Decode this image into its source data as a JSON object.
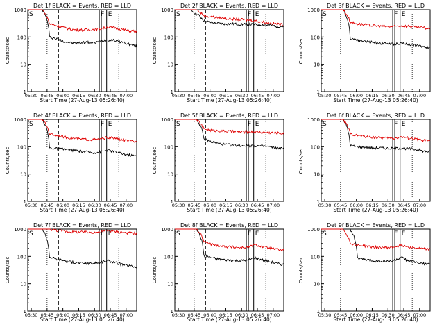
{
  "chart_data": [
    {
      "type": "line",
      "title": "Det 1f BLACK = Events, RED = LLD",
      "xlabel": "Start Time (27-Aug-13 05:26:40)",
      "ylabel": "Counts/sec",
      "x_ticks": [
        "05:30",
        "05:45",
        "06:00",
        "06:15",
        "06:30",
        "06:45",
        "07:00"
      ],
      "y_ticks": [
        "1",
        "10",
        "100",
        "1000"
      ],
      "ylim": [
        1,
        1000
      ],
      "xlim": [
        "05:26:40",
        "07:10:00"
      ],
      "y_scale": "log",
      "markers": [
        {
          "label": "S",
          "time": "05:26:40"
        },
        {
          "label": "F",
          "time": "06:34:30"
        },
        {
          "label": "E",
          "time": "06:41:30"
        }
      ],
      "series": [
        {
          "name": "Events",
          "color": "#000000",
          "values": [
            1000,
            1000,
            1000,
            100,
            85,
            70,
            60,
            60,
            65,
            60,
            70,
            80,
            75,
            65,
            55,
            45
          ]
        },
        {
          "name": "LLD",
          "color": "#e00000",
          "values": [
            1000,
            1000,
            1000,
            300,
            260,
            220,
            190,
            180,
            185,
            190,
            200,
            230,
            220,
            190,
            170,
            160
          ]
        }
      ]
    },
    {
      "type": "line",
      "title": "Det 2f BLACK = Events, RED = LLD",
      "xlabel": "Start Time (27-Aug-13 05:26:40)",
      "ylabel": "Counts/sec",
      "x_ticks": [
        "05:30",
        "05:45",
        "06:00",
        "06:15",
        "06:30",
        "06:45",
        "07:00"
      ],
      "y_ticks": [
        "1",
        "10",
        "100",
        "1000"
      ],
      "ylim": [
        1,
        1000
      ],
      "xlim": [
        "05:26:40",
        "07:10:00"
      ],
      "y_scale": "log",
      "markers": [
        {
          "label": "S",
          "time": "05:26:40"
        },
        {
          "label": "F",
          "time": "06:34:30"
        },
        {
          "label": "E",
          "time": "06:41:30"
        }
      ],
      "series": [
        {
          "name": "Events",
          "color": "#000000",
          "values": [
            1000,
            1000,
            1000,
            700,
            400,
            330,
            310,
            300,
            300,
            295,
            290,
            285,
            280,
            270,
            250,
            240
          ]
        },
        {
          "name": "LLD",
          "color": "#e00000",
          "values": [
            1000,
            1000,
            1000,
            1000,
            600,
            550,
            520,
            480,
            460,
            440,
            420,
            400,
            360,
            330,
            300,
            280
          ]
        }
      ]
    },
    {
      "type": "line",
      "title": "Det 3f BLACK = Events, RED = LLD",
      "xlabel": "Start Time (27-Aug-13 05:26:40)",
      "ylabel": "Counts/sec",
      "x_ticks": [
        "05:30",
        "05:45",
        "06:00",
        "06:15",
        "06:30",
        "06:45",
        "07:00"
      ],
      "y_ticks": [
        "1",
        "10",
        "100",
        "1000"
      ],
      "ylim": [
        1,
        1000
      ],
      "xlim": [
        "05:26:40",
        "07:10:00"
      ],
      "y_scale": "log",
      "markers": [
        {
          "label": "S",
          "time": "05:26:40"
        },
        {
          "label": "F",
          "time": "06:34:30"
        },
        {
          "label": "E",
          "time": "06:41:30"
        }
      ],
      "series": [
        {
          "name": "Events",
          "color": "#000000",
          "values": [
            1000,
            1000,
            1000,
            1000,
            90,
            80,
            70,
            65,
            60,
            58,
            55,
            60,
            55,
            50,
            45,
            40
          ]
        },
        {
          "name": "LLD",
          "color": "#e00000",
          "values": [
            1000,
            1000,
            1000,
            1000,
            350,
            300,
            280,
            260,
            250,
            240,
            240,
            260,
            250,
            230,
            220,
            200
          ]
        }
      ]
    },
    {
      "type": "line",
      "title": "Det 4f BLACK = Events, RED = LLD",
      "xlabel": "Start Time (27-Aug-13 05:26:40)",
      "ylabel": "Counts/sec",
      "x_ticks": [
        "05:30",
        "05:45",
        "06:00",
        "06:15",
        "06:30",
        "06:45",
        "07:00"
      ],
      "y_ticks": [
        "1",
        "10",
        "100",
        "1000"
      ],
      "ylim": [
        1,
        1000
      ],
      "xlim": [
        "05:26:40",
        "07:10:00"
      ],
      "y_scale": "log",
      "markers": [
        {
          "label": "S",
          "time": "05:26:40"
        },
        {
          "label": "F",
          "time": "06:34:30"
        },
        {
          "label": "E",
          "time": "06:41:30"
        }
      ],
      "series": [
        {
          "name": "Events",
          "color": "#000000",
          "values": [
            1000,
            1000,
            1000,
            90,
            85,
            80,
            75,
            70,
            65,
            60,
            65,
            75,
            65,
            55,
            50,
            45
          ]
        },
        {
          "name": "LLD",
          "color": "#e00000",
          "values": [
            1000,
            1000,
            1000,
            300,
            260,
            230,
            210,
            190,
            185,
            180,
            190,
            220,
            200,
            180,
            160,
            150
          ]
        }
      ]
    },
    {
      "type": "line",
      "title": "Det 5f BLACK = Events, RED = LLD",
      "xlabel": "Start Time (27-Aug-13 05:26:40)",
      "ylabel": "Counts/sec",
      "x_ticks": [
        "05:30",
        "05:45",
        "06:00",
        "06:15",
        "06:30",
        "06:45",
        "07:00"
      ],
      "y_ticks": [
        "1",
        "10",
        "100",
        "1000"
      ],
      "ylim": [
        1,
        1000
      ],
      "xlim": [
        "05:26:40",
        "07:10:00"
      ],
      "y_scale": "log",
      "markers": [
        {
          "label": "S",
          "time": "05:26:40"
        },
        {
          "label": "F",
          "time": "06:34:30"
        },
        {
          "label": "E",
          "time": "06:41:30"
        }
      ],
      "series": [
        {
          "name": "Events",
          "color": "#000000",
          "values": [
            1000,
            1000,
            1000,
            1000,
            190,
            150,
            130,
            120,
            115,
            110,
            110,
            110,
            105,
            100,
            90,
            85
          ]
        },
        {
          "name": "LLD",
          "color": "#e00000",
          "values": [
            1000,
            1000,
            1000,
            1000,
            450,
            400,
            380,
            370,
            360,
            350,
            350,
            350,
            340,
            330,
            320,
            310
          ]
        }
      ]
    },
    {
      "type": "line",
      "title": "Det 6f BLACK = Events, RED = LLD",
      "xlabel": "Start Time (27-Aug-13 05:26:40)",
      "ylabel": "Counts/sec",
      "x_ticks": [
        "05:30",
        "05:45",
        "06:00",
        "06:15",
        "06:30",
        "06:45",
        "07:00"
      ],
      "y_ticks": [
        "1",
        "10",
        "100",
        "1000"
      ],
      "ylim": [
        1,
        1000
      ],
      "xlim": [
        "05:26:40",
        "07:10:00"
      ],
      "y_scale": "log",
      "markers": [
        {
          "label": "S",
          "time": "05:26:40"
        },
        {
          "label": "F",
          "time": "06:34:30"
        },
        {
          "label": "E",
          "time": "06:41:30"
        }
      ],
      "series": [
        {
          "name": "Events",
          "color": "#000000",
          "values": [
            1000,
            1000,
            1000,
            1000,
            110,
            100,
            95,
            92,
            90,
            88,
            85,
            90,
            85,
            80,
            70,
            65
          ]
        },
        {
          "name": "LLD",
          "color": "#e00000",
          "values": [
            1000,
            1000,
            1000,
            1000,
            300,
            260,
            240,
            225,
            215,
            210,
            205,
            230,
            210,
            190,
            170,
            160
          ]
        }
      ]
    },
    {
      "type": "line",
      "title": "Det 7f BLACK = Events, RED = LLD",
      "xlabel": "Start Time (27-Aug-13 05:26:40)",
      "ylabel": "Counts/sec",
      "x_ticks": [
        "05:30",
        "05:45",
        "06:00",
        "06:15",
        "06:30",
        "06:45",
        "07:00"
      ],
      "y_ticks": [
        "1",
        "10",
        "100",
        "1000"
      ],
      "ylim": [
        1,
        1000
      ],
      "xlim": [
        "05:26:40",
        "07:10:00"
      ],
      "y_scale": "log",
      "markers": [
        {
          "label": "S",
          "time": "05:26:40"
        },
        {
          "label": "F",
          "time": "06:34:30"
        },
        {
          "label": "E",
          "time": "06:41:30"
        }
      ],
      "series": [
        {
          "name": "Events",
          "color": "#000000",
          "values": [
            1000,
            1000,
            1000,
            95,
            80,
            70,
            62,
            58,
            55,
            55,
            60,
            70,
            60,
            50,
            45,
            40
          ]
        },
        {
          "name": "LLD",
          "color": "#e00000",
          "values": [
            1000,
            1000,
            1000,
            1000,
            900,
            850,
            800,
            780,
            770,
            760,
            780,
            900,
            820,
            760,
            720,
            700
          ]
        }
      ]
    },
    {
      "type": "line",
      "title": "Det 8f BLACK = Events, RED = LLD",
      "xlabel": "Start Time (27-Aug-13 05:26:40)",
      "ylabel": "Counts/sec",
      "x_ticks": [
        "05:30",
        "05:45",
        "06:00",
        "06:15",
        "06:30",
        "06:45",
        "07:00"
      ],
      "y_ticks": [
        "1",
        "10",
        "100",
        "1000"
      ],
      "ylim": [
        1,
        1000
      ],
      "xlim": [
        "05:26:40",
        "07:10:00"
      ],
      "y_scale": "log",
      "markers": [
        {
          "label": "S",
          "time": "05:26:40"
        },
        {
          "label": "F",
          "time": "06:34:30"
        },
        {
          "label": "E",
          "time": "06:41:30"
        }
      ],
      "series": [
        {
          "name": "Events",
          "color": "#000000",
          "values": [
            1000,
            1000,
            1000,
            1000,
            110,
            90,
            80,
            75,
            72,
            70,
            70,
            90,
            75,
            65,
            55,
            50
          ]
        },
        {
          "name": "LLD",
          "color": "#e00000",
          "values": [
            1000,
            1000,
            1000,
            1000,
            350,
            280,
            250,
            230,
            220,
            210,
            220,
            260,
            230,
            200,
            180,
            170
          ]
        }
      ]
    },
    {
      "type": "line",
      "title": "Det 9f BLACK = Events, RED = LLD",
      "xlabel": "Start Time (27-Aug-13 05:26:40)",
      "ylabel": "Counts/sec",
      "x_ticks": [
        "05:30",
        "05:45",
        "06:00",
        "06:15",
        "06:30",
        "06:45",
        "07:00"
      ],
      "y_ticks": [
        "1",
        "10",
        "100",
        "1000"
      ],
      "ylim": [
        1,
        1000
      ],
      "xlim": [
        "05:26:40",
        "07:10:00"
      ],
      "y_scale": "log",
      "markers": [
        {
          "label": "S",
          "time": "05:26:40"
        },
        {
          "label": "F",
          "time": "06:34:30"
        },
        {
          "label": "E",
          "time": "06:41:30"
        }
      ],
      "series": [
        {
          "name": "Events",
          "color": "#000000",
          "values": [
            1000,
            1000,
            1000,
            1000,
            1000,
            85,
            75,
            70,
            68,
            65,
            70,
            90,
            70,
            60,
            55,
            50
          ]
        },
        {
          "name": "LLD",
          "color": "#e00000",
          "values": [
            1000,
            1000,
            1000,
            1000,
            300,
            260,
            240,
            220,
            215,
            210,
            220,
            260,
            230,
            200,
            190,
            180
          ]
        }
      ]
    }
  ]
}
